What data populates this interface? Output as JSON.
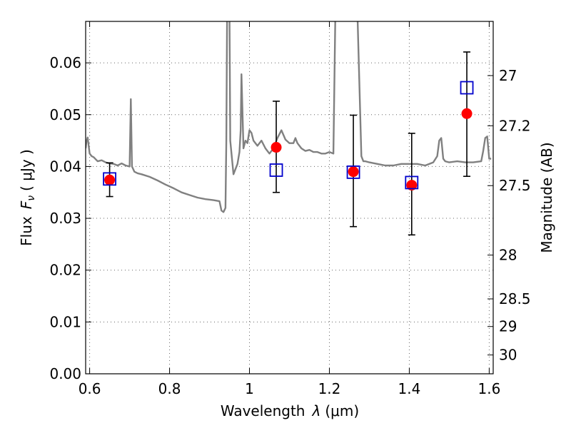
{
  "chart_data": {
    "type": "scatter",
    "title": "",
    "xlabel_text": "Wavelength",
    "xlabel_symbol": "λ",
    "xlabel_unit": "(μm)",
    "ylabel_text": "Flux",
    "ylabel_symbol": "F",
    "ylabel_subscript": "ν",
    "ylabel_unit": "( μJy )",
    "y2label": "Magnitude (AB)",
    "xlim": [
      0.59,
      1.61
    ],
    "ylim": [
      0.0,
      0.068
    ],
    "grid": true,
    "x_ticks": [
      0.6,
      0.8,
      1.0,
      1.2,
      1.4,
      1.6
    ],
    "x_tick_labels": [
      "0.6",
      "0.8",
      "1",
      "1.2",
      "1.4",
      "1.6"
    ],
    "y_ticks": [
      0.0,
      0.01,
      0.02,
      0.03,
      0.04,
      0.05,
      0.06
    ],
    "y_tick_labels": [
      "0.00",
      "0.01",
      "0.02",
      "0.03",
      "0.04",
      "0.05",
      "0.06"
    ],
    "y2_ticks": [
      27.0,
      27.2,
      27.5,
      28.0,
      28.5,
      29.0,
      30.0
    ],
    "y2_tick_labels": [
      "27",
      "27.2",
      "27.5",
      "28",
      "28.5",
      "29",
      "30"
    ],
    "colors": {
      "template": "#808080",
      "observed": "#ff0000",
      "model": "#0000cc",
      "errorbar": "#000000"
    },
    "series": [
      {
        "kind": "line",
        "x": [
          0.59,
          0.592,
          0.595,
          0.6,
          0.605,
          0.61,
          0.62,
          0.63,
          0.64,
          0.65,
          0.66,
          0.67,
          0.68,
          0.69,
          0.7,
          0.703,
          0.706,
          0.709,
          0.712,
          0.72,
          0.73,
          0.75,
          0.77,
          0.79,
          0.81,
          0.83,
          0.85,
          0.87,
          0.89,
          0.91,
          0.925,
          0.93,
          0.935,
          0.94,
          0.942,
          0.944,
          0.946,
          0.948,
          0.95,
          0.952,
          0.96,
          0.97,
          0.975,
          0.978,
          0.98,
          0.985,
          0.99,
          0.995,
          1.0,
          1.005,
          1.01,
          1.02,
          1.03,
          1.04,
          1.05,
          1.06,
          1.07,
          1.08,
          1.09,
          1.1,
          1.105,
          1.11,
          1.115,
          1.12,
          1.13,
          1.14,
          1.15,
          1.16,
          1.17,
          1.18,
          1.19,
          1.2,
          1.21,
          1.215,
          1.218,
          1.22,
          1.23,
          1.24,
          1.25,
          1.26,
          1.27,
          1.28,
          1.285,
          1.29,
          1.3,
          1.32,
          1.34,
          1.36,
          1.38,
          1.4,
          1.42,
          1.44,
          1.46,
          1.47,
          1.475,
          1.48,
          1.485,
          1.49,
          1.5,
          1.52,
          1.54,
          1.56,
          1.58,
          1.585,
          1.59,
          1.595,
          1.6,
          1.605
        ],
        "y": [
          0.0435,
          0.0448,
          0.0456,
          0.0425,
          0.042,
          0.0418,
          0.041,
          0.0412,
          0.0408,
          0.0406,
          0.0405,
          0.0402,
          0.0406,
          0.0402,
          0.04,
          0.053,
          0.04,
          0.0395,
          0.039,
          0.0387,
          0.0385,
          0.038,
          0.0373,
          0.0365,
          0.0358,
          0.035,
          0.0345,
          0.034,
          0.0337,
          0.0335,
          0.0333,
          0.0315,
          0.0312,
          0.032,
          0.045,
          0.07,
          0.07,
          0.07,
          0.07,
          0.045,
          0.0385,
          0.0405,
          0.0428,
          0.047,
          0.0578,
          0.0435,
          0.045,
          0.0445,
          0.047,
          0.0465,
          0.045,
          0.044,
          0.045,
          0.0435,
          0.0425,
          0.0435,
          0.0455,
          0.047,
          0.0452,
          0.0445,
          0.0445,
          0.0445,
          0.0455,
          0.0445,
          0.0435,
          0.043,
          0.0432,
          0.0428,
          0.0428,
          0.0425,
          0.0425,
          0.0428,
          0.0425,
          0.07,
          0.07,
          0.07,
          0.07,
          0.07,
          0.07,
          0.07,
          0.07,
          0.042,
          0.041,
          0.041,
          0.0408,
          0.0405,
          0.0402,
          0.0402,
          0.0405,
          0.0405,
          0.0405,
          0.0402,
          0.0408,
          0.042,
          0.045,
          0.0455,
          0.0415,
          0.041,
          0.0408,
          0.041,
          0.0408,
          0.0408,
          0.041,
          0.043,
          0.0455,
          0.0458,
          0.0415,
          0.0415
        ]
      },
      {
        "kind": "errorbar",
        "marker": "filled-circle",
        "x": [
          0.65,
          1.067,
          1.26,
          1.406,
          1.544
        ],
        "y": [
          0.0374,
          0.0437,
          0.039,
          0.0364,
          0.0502
        ],
        "yerr_low": [
          0.0032,
          0.0087,
          0.0106,
          0.0096,
          0.0121
        ],
        "yerr_high": [
          0.0033,
          0.0089,
          0.0109,
          0.01,
          0.0119
        ]
      },
      {
        "kind": "scatter",
        "marker": "open-square",
        "x": [
          0.65,
          1.067,
          1.26,
          1.406,
          1.544
        ],
        "y": [
          0.0376,
          0.0393,
          0.0389,
          0.0369,
          0.0552
        ]
      }
    ]
  }
}
